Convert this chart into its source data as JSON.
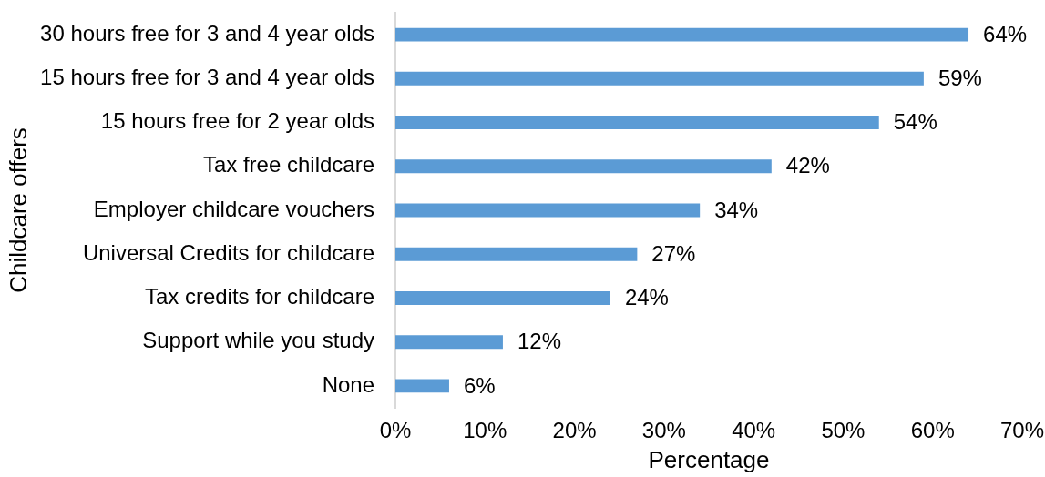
{
  "chart_data": {
    "type": "bar",
    "orientation": "horizontal",
    "categories": [
      "30 hours free for 3 and 4 year olds",
      "15 hours free for 3 and 4 year olds",
      "15 hours free for 2 year olds",
      "Tax free childcare",
      "Employer childcare vouchers",
      "Universal Credits for childcare",
      "Tax credits for childcare",
      "Support while you study",
      "None"
    ],
    "values": [
      64,
      59,
      54,
      42,
      34,
      27,
      24,
      12,
      6
    ],
    "value_labels": [
      "64%",
      "59%",
      "54%",
      "42%",
      "34%",
      "27%",
      "24%",
      "12%",
      "6%"
    ],
    "color": "#5b9bd5",
    "xlim": [
      0,
      70
    ],
    "xticks": [
      {
        "value": 0,
        "label": "0%"
      },
      {
        "value": 10,
        "label": "10%"
      },
      {
        "value": 20,
        "label": "20%"
      },
      {
        "value": 30,
        "label": "30%"
      },
      {
        "value": 40,
        "label": "40%"
      },
      {
        "value": 50,
        "label": "50%"
      },
      {
        "value": 60,
        "label": "60%"
      },
      {
        "value": 70,
        "label": "70%"
      }
    ],
    "xlabel": "Percentage",
    "ylabel": "Childcare offers",
    "legend": false
  }
}
